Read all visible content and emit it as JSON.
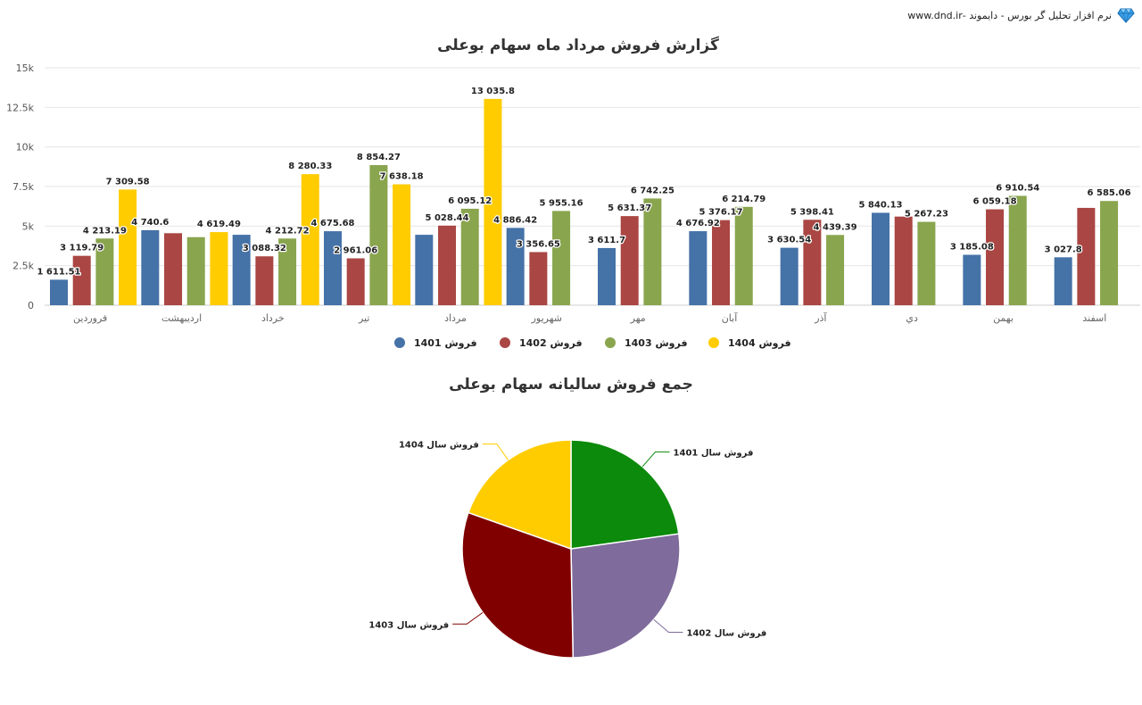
{
  "header": {
    "brand_text": "نرم افزار تحلیل گر بورس - دایموند -www.dnd.ir",
    "logo_icon": "diamond-icon"
  },
  "chart_data": [
    {
      "type": "bar",
      "title": "گزارش فروش مرداد ماه سهام بوعلی",
      "categories": [
        "فروردین",
        "اردیبهشت",
        "خرداد",
        "تیر",
        "مرداد",
        "شهریور",
        "مهر",
        "آبان",
        "آذر",
        "دي",
        "بهمن",
        "اسفند"
      ],
      "yticks": [
        "0",
        "2.5k",
        "5k",
        "7.5k",
        "10k",
        "12.5k",
        "15k"
      ],
      "ylim": [
        0,
        15000
      ],
      "grid": true,
      "legend_position": "bottom",
      "series": [
        {
          "name": "فروش 1401",
          "color": "#4572a7",
          "values": [
            1611.51,
            4740.6,
            4450,
            4675.68,
            4450,
            4886.42,
            3611.7,
            4676.92,
            3630.54,
            5840.13,
            3185.08,
            3027.8
          ],
          "labels": [
            "1 611.51",
            "4 740.6",
            "",
            "4 675.68",
            "",
            "4 886.42",
            "3 611.7",
            "4 676.92",
            "3 630.54",
            "5 840.13",
            "3 185.08",
            "3 027.8"
          ]
        },
        {
          "name": "فروش 1402",
          "color": "#aa4643",
          "values": [
            3119.79,
            4550,
            3088.32,
            2961.06,
            5028.44,
            3356.65,
            5631.37,
            5376.17,
            5398.41,
            5600,
            6059.18,
            6150
          ],
          "labels": [
            "3 119.79",
            "",
            "3 088.32",
            "2 961.06",
            "5 028.44",
            "3 356.65",
            "5 631.37",
            "5 376.17",
            "5 398.41",
            "",
            "6 059.18",
            ""
          ]
        },
        {
          "name": "فروش 1403",
          "color": "#89a54e",
          "values": [
            4213.19,
            4300,
            4212.72,
            8854.27,
            6095.12,
            5955.16,
            6742.25,
            6214.79,
            4439.39,
            5267.23,
            6910.54,
            6585.06
          ],
          "labels": [
            "4 213.19",
            "",
            "4 212.72",
            "8 854.27",
            "6 095.12",
            "5 955.16",
            "6 742.25",
            "6 214.79",
            "4 439.39",
            "5 267.23",
            "6 910.54",
            "6 585.06"
          ]
        },
        {
          "name": "فروش 1404",
          "color": "#ffcc00",
          "values": [
            7309.58,
            4619.49,
            8280.33,
            7638.18,
            13035.8,
            null,
            null,
            null,
            null,
            null,
            null,
            null
          ],
          "labels": [
            "7 309.58",
            "4 619.49",
            "8 280.33",
            "7 638.18",
            "13 035.8",
            "",
            "",
            "",
            "",
            "",
            "",
            ""
          ]
        }
      ]
    },
    {
      "type": "pie",
      "title": "جمع فروش سالیانه سهام بوعلی",
      "slices": [
        {
          "label": "فروش سال 1401",
          "value": 22.8,
          "color": "#0b8a0b"
        },
        {
          "label": "فروش سال 1402",
          "value": 26.9,
          "color": "#7f6b9c"
        },
        {
          "label": "فروش سال 1403",
          "value": 30.7,
          "color": "#800000"
        },
        {
          "label": "فروش سال 1404",
          "value": 19.6,
          "color": "#ffcc00"
        }
      ]
    }
  ]
}
